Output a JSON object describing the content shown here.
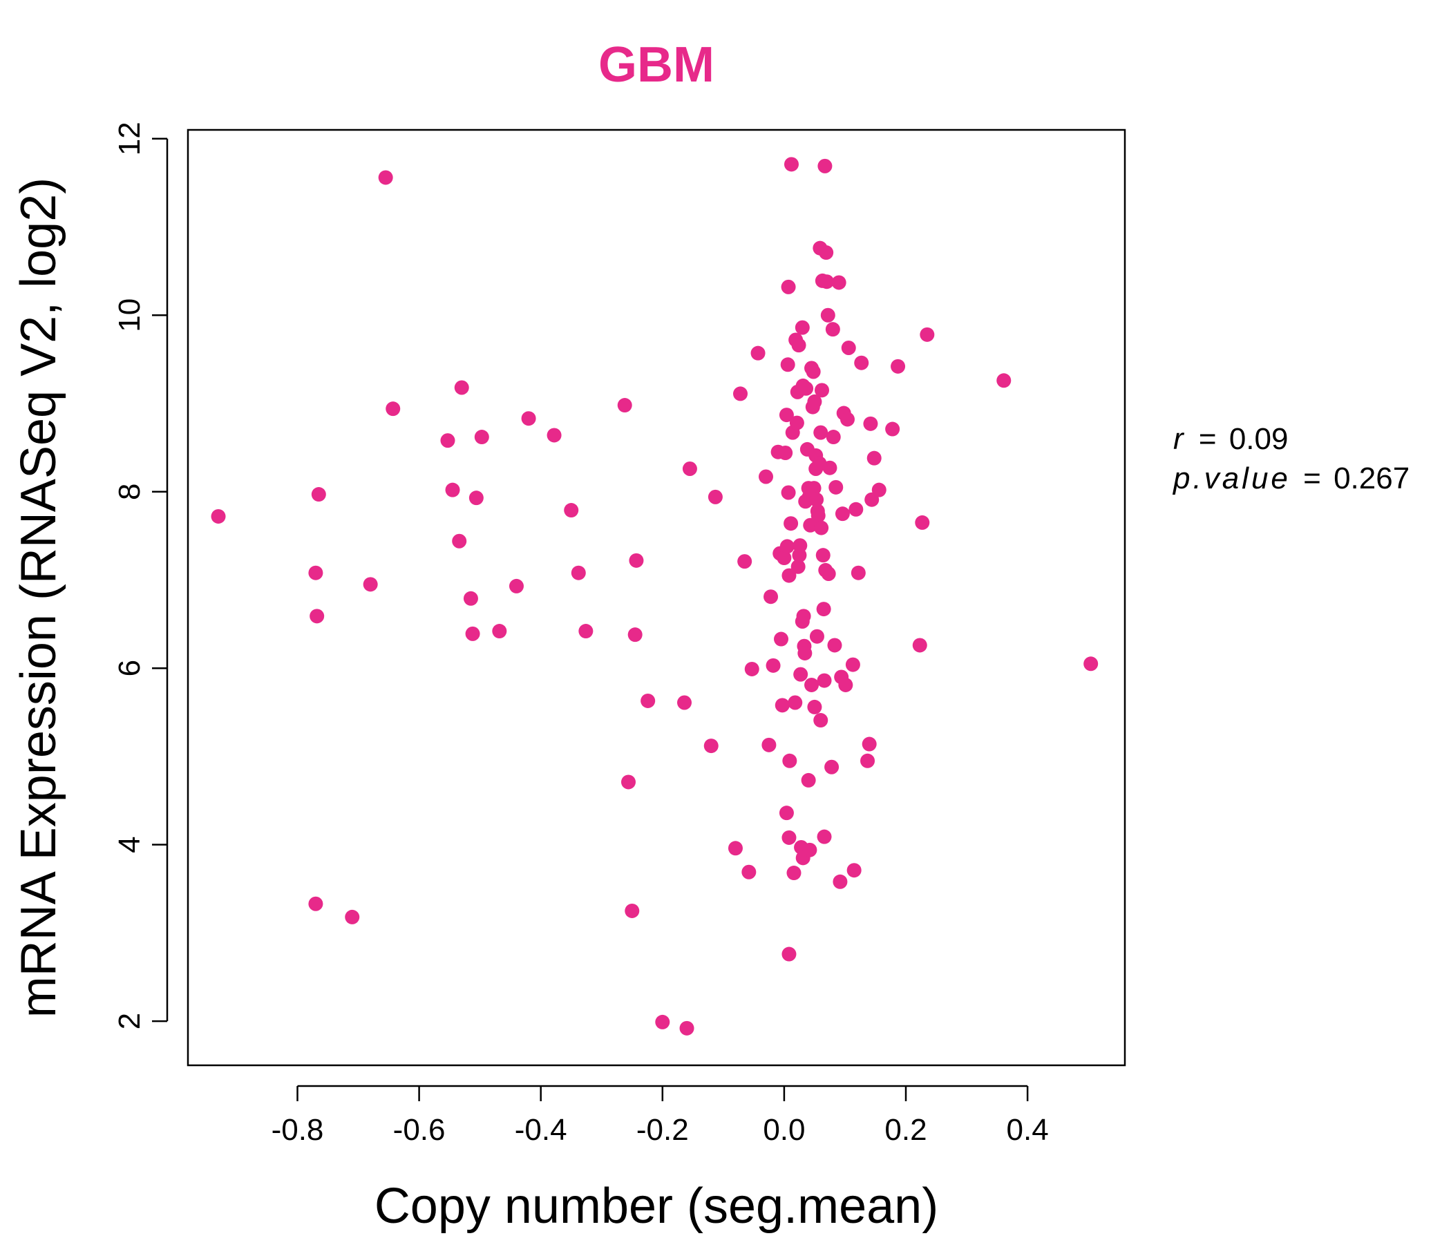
{
  "chart_data": {
    "type": "scatter",
    "title": "GBM",
    "xlabel": "Copy number (seg.mean)",
    "ylabel": "mRNA Expression (RNASeq V2, log2)",
    "xlim": [
      -0.98,
      0.56
    ],
    "ylim": [
      1.5,
      12.1
    ],
    "x_ticks": [
      -0.8,
      -0.6,
      -0.4,
      -0.2,
      0.0,
      0.2,
      0.4
    ],
    "x_tick_labels": [
      "-0.8",
      "-0.6",
      "-0.4",
      "-0.2",
      "0.0",
      "0.2",
      "0.4"
    ],
    "y_ticks": [
      2,
      4,
      6,
      8,
      10,
      12
    ],
    "y_tick_labels": [
      "2",
      "4",
      "6",
      "8",
      "10",
      "12"
    ],
    "grid": false,
    "stats": {
      "r_label": "r",
      "r_value": "0.09",
      "p_label": "p.value",
      "p_value": "0.267"
    },
    "point_color": "#E7298A",
    "points": [
      [
        -0.93,
        7.72
      ],
      [
        -0.765,
        7.97
      ],
      [
        -0.77,
        7.08
      ],
      [
        -0.768,
        6.59
      ],
      [
        -0.77,
        3.33
      ],
      [
        -0.71,
        3.18
      ],
      [
        -0.68,
        6.95
      ],
      [
        -0.655,
        11.56
      ],
      [
        -0.643,
        8.94
      ],
      [
        -0.553,
        8.58
      ],
      [
        -0.545,
        8.02
      ],
      [
        -0.534,
        7.44
      ],
      [
        -0.53,
        9.18
      ],
      [
        -0.515,
        6.79
      ],
      [
        -0.512,
        6.39
      ],
      [
        -0.506,
        7.93
      ],
      [
        -0.497,
        8.62
      ],
      [
        -0.468,
        6.42
      ],
      [
        -0.44,
        6.93
      ],
      [
        -0.42,
        8.83
      ],
      [
        -0.378,
        8.64
      ],
      [
        -0.35,
        7.79
      ],
      [
        -0.338,
        7.08
      ],
      [
        -0.326,
        6.42
      ],
      [
        -0.262,
        8.98
      ],
      [
        -0.256,
        4.71
      ],
      [
        -0.25,
        3.25
      ],
      [
        -0.245,
        6.38
      ],
      [
        -0.243,
        7.22
      ],
      [
        -0.224,
        5.63
      ],
      [
        -0.2,
        1.99
      ],
      [
        -0.164,
        5.61
      ],
      [
        -0.16,
        1.92
      ],
      [
        -0.155,
        8.26
      ],
      [
        -0.12,
        5.12
      ],
      [
        -0.113,
        7.94
      ],
      [
        -0.08,
        3.96
      ],
      [
        -0.072,
        9.11
      ],
      [
        -0.065,
        7.21
      ],
      [
        -0.058,
        3.69
      ],
      [
        -0.053,
        5.99
      ],
      [
        -0.043,
        9.57
      ],
      [
        -0.03,
        8.17
      ],
      [
        -0.025,
        5.13
      ],
      [
        -0.022,
        6.81
      ],
      [
        -0.018,
        6.03
      ],
      [
        -0.01,
        8.45
      ],
      [
        -0.007,
        7.3
      ],
      [
        -0.005,
        6.33
      ],
      [
        -0.003,
        5.58
      ],
      [
        0.0,
        7.25
      ],
      [
        0.002,
        8.44
      ],
      [
        0.004,
        8.87
      ],
      [
        0.005,
        7.38
      ],
      [
        0.004,
        4.36
      ],
      [
        0.006,
        9.44
      ],
      [
        0.007,
        10.32
      ],
      [
        0.007,
        7.99
      ],
      [
        0.008,
        7.05
      ],
      [
        0.008,
        4.08
      ],
      [
        0.009,
        4.95
      ],
      [
        0.008,
        2.76
      ],
      [
        0.011,
        7.64
      ],
      [
        0.012,
        11.71
      ],
      [
        0.014,
        8.67
      ],
      [
        0.016,
        3.68
      ],
      [
        0.018,
        5.61
      ],
      [
        0.019,
        9.72
      ],
      [
        0.021,
        8.78
      ],
      [
        0.022,
        9.13
      ],
      [
        0.023,
        7.15
      ],
      [
        0.024,
        9.66
      ],
      [
        0.025,
        7.28
      ],
      [
        0.026,
        7.39
      ],
      [
        0.027,
        5.93
      ],
      [
        0.028,
        3.97
      ],
      [
        0.03,
        9.86
      ],
      [
        0.031,
        9.2
      ],
      [
        0.03,
        6.53
      ],
      [
        0.031,
        3.85
      ],
      [
        0.032,
        6.59
      ],
      [
        0.033,
        6.25
      ],
      [
        0.034,
        6.17
      ],
      [
        0.035,
        7.89
      ],
      [
        0.036,
        9.17
      ],
      [
        0.038,
        8.48
      ],
      [
        0.04,
        8.04
      ],
      [
        0.04,
        4.73
      ],
      [
        0.041,
        7.94
      ],
      [
        0.042,
        3.94
      ],
      [
        0.043,
        7.62
      ],
      [
        0.045,
        9.4
      ],
      [
        0.045,
        5.81
      ],
      [
        0.047,
        8.96
      ],
      [
        0.048,
        9.36
      ],
      [
        0.049,
        8.04
      ],
      [
        0.05,
        9.02
      ],
      [
        0.05,
        5.56
      ],
      [
        0.052,
        8.41
      ],
      [
        0.052,
        8.26
      ],
      [
        0.053,
        7.91
      ],
      [
        0.054,
        6.36
      ],
      [
        0.055,
        7.78
      ],
      [
        0.056,
        7.73
      ],
      [
        0.058,
        8.32
      ],
      [
        0.059,
        10.76
      ],
      [
        0.06,
        8.67
      ],
      [
        0.06,
        5.41
      ],
      [
        0.061,
        7.59
      ],
      [
        0.062,
        9.15
      ],
      [
        0.063,
        10.39
      ],
      [
        0.064,
        7.28
      ],
      [
        0.065,
        6.67
      ],
      [
        0.066,
        5.86
      ],
      [
        0.066,
        4.09
      ],
      [
        0.067,
        11.69
      ],
      [
        0.068,
        7.11
      ],
      [
        0.069,
        10.71
      ],
      [
        0.07,
        10.38
      ],
      [
        0.072,
        10.0
      ],
      [
        0.073,
        7.07
      ],
      [
        0.075,
        8.27
      ],
      [
        0.078,
        4.88
      ],
      [
        0.08,
        9.84
      ],
      [
        0.081,
        8.62
      ],
      [
        0.083,
        6.26
      ],
      [
        0.085,
        8.05
      ],
      [
        0.09,
        10.37
      ],
      [
        0.092,
        3.58
      ],
      [
        0.094,
        5.9
      ],
      [
        0.096,
        7.75
      ],
      [
        0.098,
        8.89
      ],
      [
        0.101,
        5.81
      ],
      [
        0.104,
        8.82
      ],
      [
        0.106,
        9.63
      ],
      [
        0.113,
        6.04
      ],
      [
        0.115,
        3.71
      ],
      [
        0.118,
        7.8
      ],
      [
        0.122,
        7.08
      ],
      [
        0.127,
        9.46
      ],
      [
        0.137,
        4.95
      ],
      [
        0.14,
        5.14
      ],
      [
        0.142,
        8.77
      ],
      [
        0.144,
        7.91
      ],
      [
        0.148,
        8.38
      ],
      [
        0.156,
        8.02
      ],
      [
        0.178,
        8.71
      ],
      [
        0.187,
        9.42
      ],
      [
        0.223,
        6.26
      ],
      [
        0.227,
        7.65
      ],
      [
        0.235,
        9.78
      ],
      [
        0.361,
        9.26
      ],
      [
        0.504,
        6.05
      ]
    ]
  }
}
